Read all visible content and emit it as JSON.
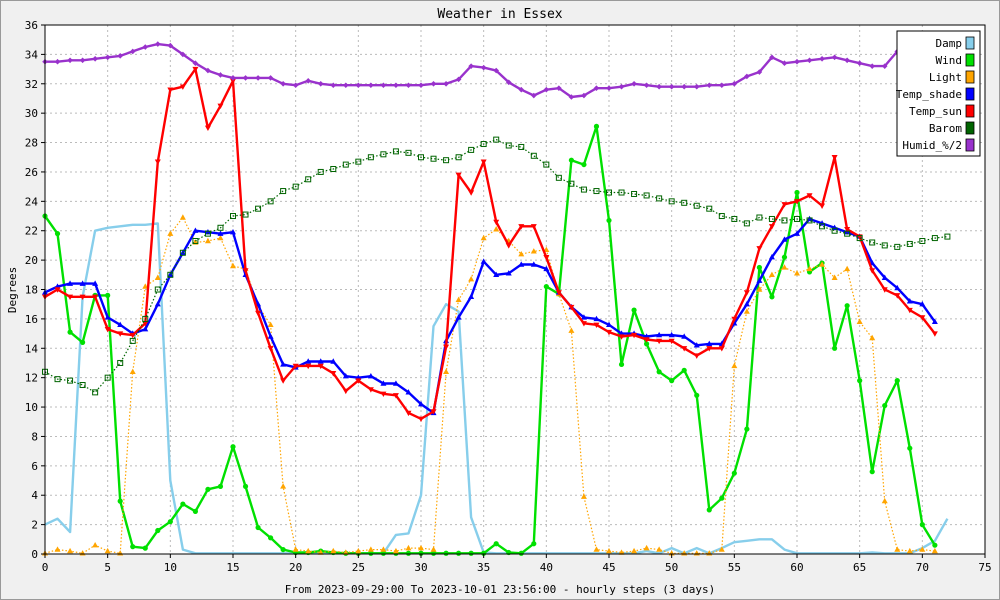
{
  "chart_data": {
    "type": "line",
    "title": "Weather in Essex",
    "xlabel": "From 2023-09-29:00 To 2023-10-01 23:56:00 - hourly steps (3 days)",
    "ylabel": "Degrees",
    "xlim": [
      0,
      75
    ],
    "ylim": [
      0,
      36
    ],
    "x_ticks": [
      0,
      5,
      10,
      15,
      20,
      25,
      30,
      35,
      40,
      45,
      50,
      55,
      60,
      65,
      70,
      75
    ],
    "y_ticks": [
      0,
      2,
      4,
      6,
      8,
      10,
      12,
      14,
      16,
      18,
      20,
      22,
      24,
      26,
      28,
      30,
      32,
      34,
      36
    ],
    "grid": true,
    "legend_position": "top-right",
    "series": [
      {
        "name": "Damp",
        "color": "#87ceeb",
        "marker": "none",
        "style": "solid",
        "values": [
          2.0,
          2.4,
          1.5,
          17.5,
          22.0,
          22.2,
          22.3,
          22.4,
          22.4,
          22.5,
          5.0,
          0.3,
          0.05,
          0.05,
          0.05,
          0.05,
          0.05,
          0.05,
          0.05,
          0.05,
          0.05,
          0.05,
          0.05,
          0.05,
          0.05,
          0.05,
          0.05,
          0.05,
          1.3,
          1.4,
          4.0,
          15.5,
          17.0,
          16.5,
          2.5,
          0.1,
          0.05,
          0.05,
          0.05,
          0.05,
          0.05,
          0.05,
          0.05,
          0.05,
          0.05,
          0.05,
          0.05,
          0.05,
          0.2,
          0.05,
          0.4,
          0.05,
          0.4,
          0.05,
          0.4,
          0.8,
          0.9,
          1.0,
          1.0,
          0.3,
          0.05,
          0.05,
          0.05,
          0.05,
          0.05,
          0.05,
          0.1,
          0.05,
          0.05,
          0.05,
          0.4,
          0.9,
          2.4
        ]
      },
      {
        "name": "Wind",
        "color": "#00e000",
        "marker": "circle",
        "style": "solid",
        "values": [
          23.0,
          21.8,
          15.1,
          14.4,
          17.6,
          17.6,
          3.6,
          0.5,
          0.4,
          1.6,
          2.2,
          3.4,
          2.9,
          4.4,
          4.6,
          7.3,
          4.6,
          1.8,
          1.1,
          0.3,
          0.1,
          0.1,
          0.2,
          0.1,
          0.05,
          0.05,
          0.05,
          0.05,
          0.05,
          0.05,
          0.05,
          0.05,
          0.05,
          0.05,
          0.05,
          0.05,
          0.7,
          0.1,
          0.05,
          0.7,
          18.2,
          17.7,
          26.8,
          26.5,
          29.1,
          22.7,
          12.9,
          16.6,
          14.3,
          12.4,
          11.8,
          12.5,
          10.8,
          3.0,
          3.8,
          5.5,
          8.5,
          19.5,
          17.5,
          20.2,
          24.6,
          19.2,
          19.8,
          14.0,
          16.9,
          11.8,
          5.6,
          10.1,
          11.8,
          7.2,
          2.0,
          0.6
        ]
      },
      {
        "name": "Light",
        "color": "#ffa500",
        "marker": "triangle-up",
        "style": "dotted",
        "values": [
          0.05,
          0.3,
          0.2,
          0.05,
          0.6,
          0.2,
          0.05,
          12.4,
          18.2,
          18.8,
          21.8,
          22.9,
          21.2,
          21.3,
          21.5,
          19.6,
          19.4,
          16.9,
          15.6,
          4.6,
          0.3,
          0.2,
          0.1,
          0.2,
          0.1,
          0.2,
          0.3,
          0.3,
          0.2,
          0.4,
          0.4,
          0.3,
          12.4,
          17.3,
          18.7,
          21.5,
          22.1,
          21.3,
          20.4,
          20.6,
          20.7,
          17.7,
          15.2,
          3.9,
          0.3,
          0.2,
          0.1,
          0.2,
          0.4,
          0.3,
          0.05,
          0.05,
          0.05,
          0.05,
          0.3,
          12.8,
          16.5,
          18.0,
          19.0,
          19.5,
          19.1,
          19.4,
          19.7,
          18.8,
          19.4,
          15.8,
          14.7,
          3.6,
          0.3,
          0.2,
          0.3,
          0.2
        ]
      },
      {
        "name": "Temp_shade",
        "color": "#0000ff",
        "marker": "triangle-up",
        "style": "solid",
        "values": [
          17.8,
          18.2,
          18.4,
          18.4,
          18.4,
          16.1,
          15.6,
          15.0,
          15.3,
          17.0,
          19.0,
          20.5,
          22.0,
          21.9,
          21.8,
          21.9,
          19.0,
          17.0,
          14.8,
          12.9,
          12.7,
          13.1,
          13.1,
          13.1,
          12.1,
          12.0,
          12.1,
          11.6,
          11.6,
          11.0,
          10.2,
          9.6,
          14.5,
          16.1,
          17.5,
          19.9,
          19.0,
          19.1,
          19.7,
          19.7,
          19.4,
          17.8,
          16.8,
          16.1,
          16.0,
          15.6,
          15.0,
          15.0,
          14.8,
          14.9,
          14.9,
          14.8,
          14.2,
          14.3,
          14.3,
          15.7,
          17.0,
          18.6,
          20.2,
          21.4,
          21.8,
          22.8,
          22.5,
          22.2,
          21.9,
          21.6,
          19.8,
          18.8,
          18.1,
          17.2,
          17.0,
          15.8
        ]
      },
      {
        "name": "Temp_sun",
        "color": "#ff0000",
        "marker": "triangle-down",
        "style": "solid",
        "values": [
          17.5,
          18.0,
          17.5,
          17.5,
          17.5,
          15.3,
          15.0,
          14.9,
          15.7,
          26.7,
          31.6,
          31.8,
          33.0,
          29.0,
          30.5,
          32.2,
          19.3,
          16.4,
          14.0,
          11.8,
          12.8,
          12.8,
          12.8,
          12.3,
          11.1,
          11.8,
          11.2,
          10.9,
          10.8,
          9.6,
          9.2,
          9.7,
          14.1,
          25.8,
          24.6,
          26.7,
          22.6,
          21.0,
          22.3,
          22.3,
          20.2,
          17.8,
          16.8,
          15.7,
          15.6,
          15.1,
          14.8,
          14.9,
          14.6,
          14.5,
          14.5,
          14.0,
          13.5,
          14.0,
          14.0,
          16.0,
          17.8,
          20.8,
          22.3,
          23.8,
          24.0,
          24.4,
          23.7,
          27.0,
          22.1,
          21.6,
          19.3,
          18.0,
          17.6,
          16.6,
          16.1,
          15.0
        ]
      },
      {
        "name": "Barom",
        "color": "#006400",
        "marker": "square-open",
        "style": "dotted",
        "values": [
          12.4,
          11.9,
          11.8,
          11.5,
          11.0,
          12.0,
          13.0,
          14.5,
          16.0,
          18.0,
          19.0,
          20.5,
          21.3,
          21.8,
          22.2,
          23.0,
          23.1,
          23.5,
          24.0,
          24.7,
          25.0,
          25.5,
          26.0,
          26.2,
          26.5,
          26.7,
          27.0,
          27.2,
          27.4,
          27.3,
          27.0,
          26.9,
          26.8,
          27.0,
          27.5,
          27.9,
          28.2,
          27.8,
          27.7,
          27.1,
          26.5,
          25.6,
          25.2,
          24.8,
          24.7,
          24.6,
          24.6,
          24.5,
          24.4,
          24.2,
          24.0,
          23.9,
          23.7,
          23.5,
          23.0,
          22.8,
          22.5,
          22.9,
          22.8,
          22.7,
          22.8,
          22.7,
          22.3,
          22.0,
          21.8,
          21.5,
          21.2,
          21.0,
          20.9,
          21.1,
          21.3,
          21.5,
          21.6
        ]
      },
      {
        "name": "Humid_%/2",
        "color": "#9932cc",
        "marker": "diamond",
        "style": "solid",
        "values": [
          33.5,
          33.5,
          33.6,
          33.6,
          33.7,
          33.8,
          33.9,
          34.2,
          34.5,
          34.7,
          34.6,
          34.0,
          33.4,
          32.9,
          32.6,
          32.4,
          32.4,
          32.4,
          32.4,
          32.0,
          31.9,
          32.2,
          32.0,
          31.9,
          31.9,
          31.9,
          31.9,
          31.9,
          31.9,
          31.9,
          31.9,
          32.0,
          32.0,
          32.3,
          33.2,
          33.1,
          32.9,
          32.1,
          31.6,
          31.2,
          31.6,
          31.7,
          31.1,
          31.2,
          31.7,
          31.7,
          31.8,
          32.0,
          31.9,
          31.8,
          31.8,
          31.8,
          31.8,
          31.9,
          31.9,
          32.0,
          32.5,
          32.8,
          33.8,
          33.4,
          33.5,
          33.6,
          33.7,
          33.8,
          33.6,
          33.4,
          33.2,
          33.2,
          34.2,
          34.7,
          35.0,
          35.0,
          35.0
        ]
      }
    ]
  }
}
